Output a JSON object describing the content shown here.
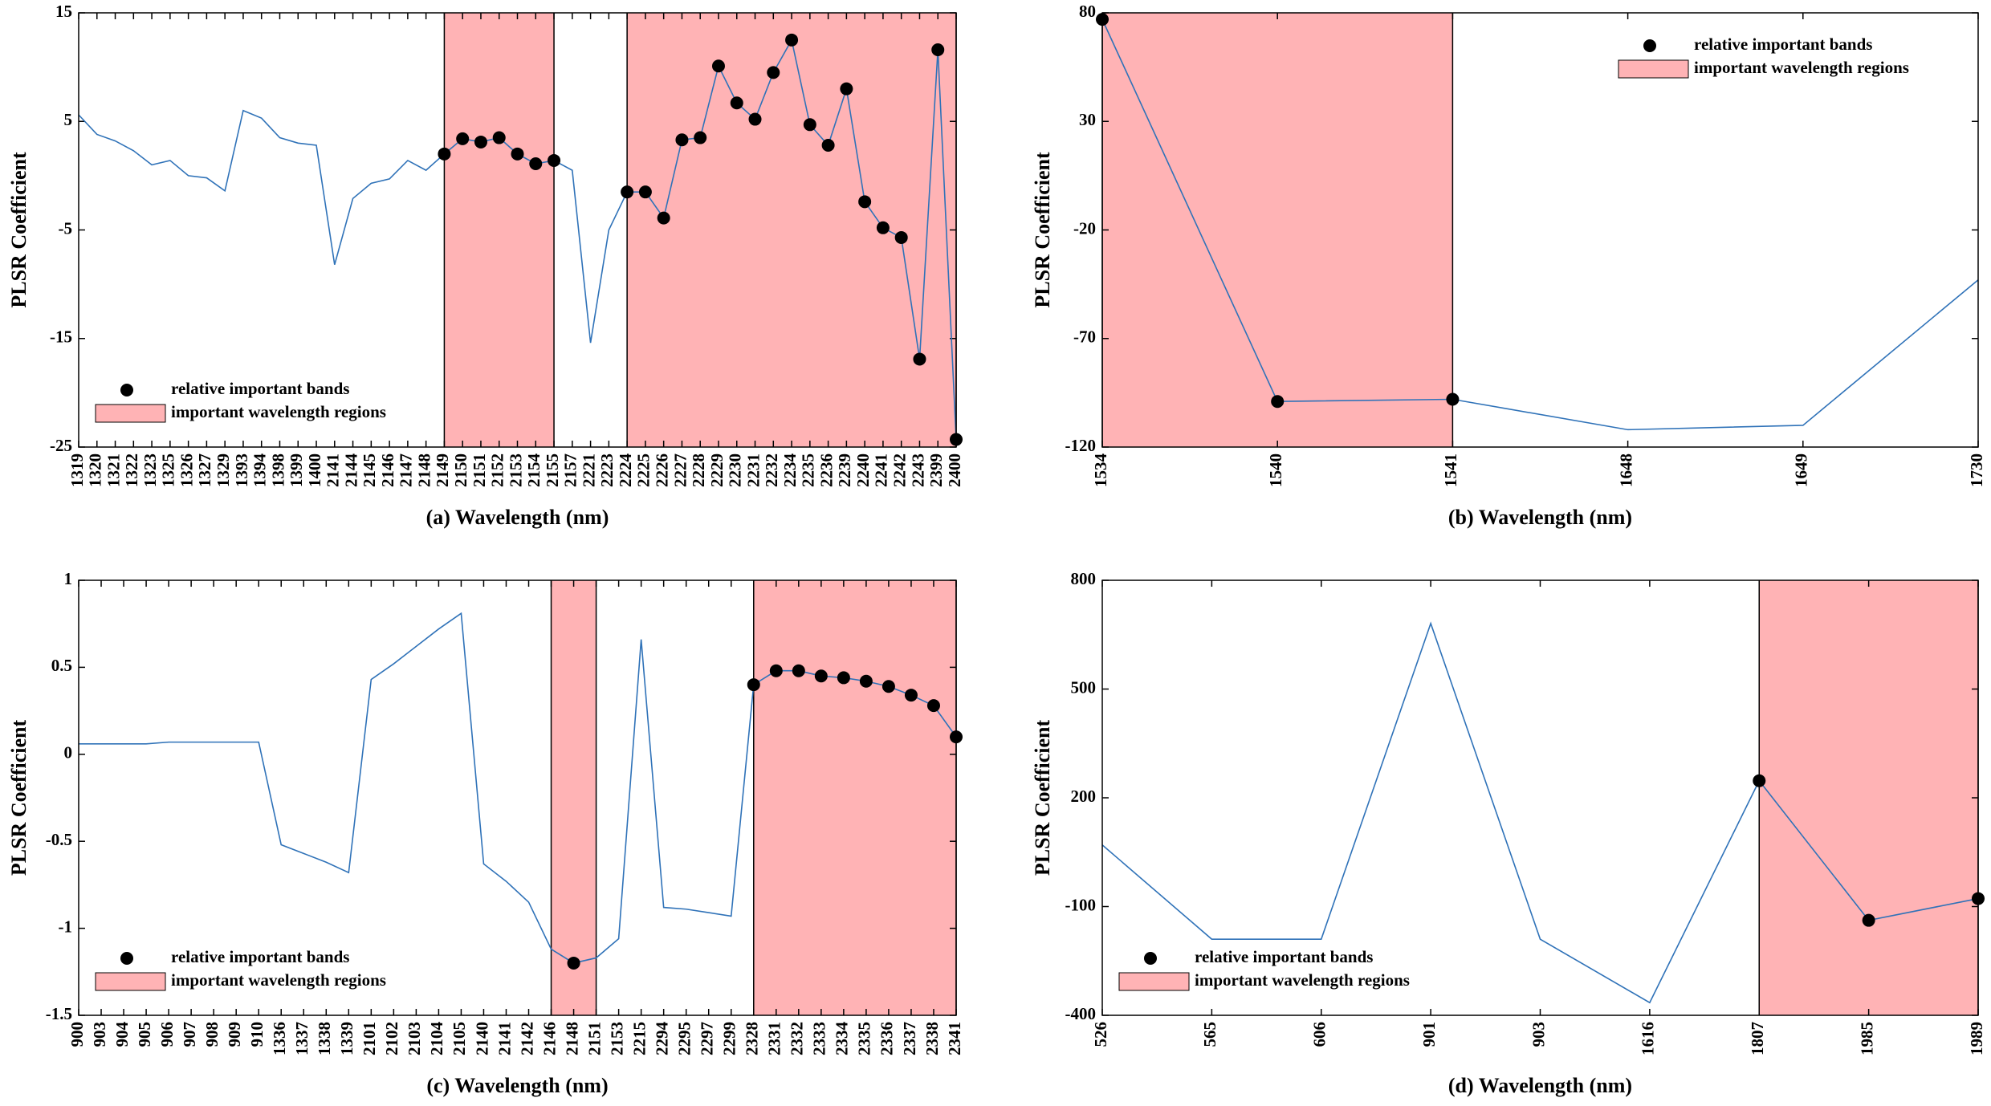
{
  "chart_data": [
    {
      "type": "line",
      "xlabel": "(a) Wavelength (nm)",
      "ylabel": "PLSR Coefficient",
      "categories": [
        "1319",
        "1320",
        "1321",
        "1322",
        "1323",
        "1325",
        "1326",
        "1327",
        "1329",
        "1393",
        "1394",
        "1398",
        "1399",
        "1400",
        "2141",
        "2144",
        "2145",
        "2146",
        "2147",
        "2148",
        "2149",
        "2150",
        "2151",
        "2152",
        "2153",
        "2154",
        "2155",
        "2157",
        "2221",
        "2223",
        "2224",
        "2225",
        "2226",
        "2227",
        "2228",
        "2229",
        "2230",
        "2231",
        "2232",
        "2234",
        "2235",
        "2236",
        "2239",
        "2240",
        "2241",
        "2242",
        "2243",
        "2399",
        "2400"
      ],
      "values": [
        5.6,
        3.8,
        3.2,
        2.3,
        1.0,
        1.4,
        0.0,
        -0.2,
        -1.4,
        6.0,
        5.3,
        3.5,
        3.0,
        2.8,
        -8.2,
        -2.1,
        -0.7,
        -0.3,
        1.4,
        0.5,
        2.0,
        3.4,
        3.1,
        3.5,
        2.0,
        1.1,
        1.4,
        0.5,
        -15.4,
        -5.0,
        -1.5,
        -1.5,
        -3.9,
        3.3,
        3.5,
        10.1,
        6.7,
        5.2,
        9.5,
        12.5,
        4.7,
        2.8,
        8.0,
        -2.4,
        -4.8,
        -5.7,
        -16.9,
        11.6,
        -24.3
      ],
      "important": [
        "2149",
        "2150",
        "2151",
        "2152",
        "2153",
        "2154",
        "2155",
        "2224",
        "2225",
        "2226",
        "2227",
        "2228",
        "2229",
        "2230",
        "2231",
        "2232",
        "2234",
        "2235",
        "2236",
        "2239",
        "2240",
        "2241",
        "2242",
        "2243",
        "2399",
        "2400"
      ],
      "regions": [
        [
          "2149",
          "2155"
        ],
        [
          "2224",
          "2400"
        ]
      ],
      "ylim": [
        -25,
        15
      ],
      "yticks": [
        -25,
        -15,
        -5,
        5,
        15
      ],
      "color": "#2f72b8",
      "marker_color": "#000000",
      "region_color": "#ffb3b5",
      "marker_name": "relative important bands",
      "region_name": "important wavelength regions",
      "legend_loc": "lower left"
    },
    {
      "type": "line",
      "xlabel": "(b) Wavelength (nm)",
      "ylabel": "PLSR Coefficient",
      "categories": [
        "1534",
        "1540",
        "1541",
        "1648",
        "1649",
        "1730"
      ],
      "values": [
        77,
        -99,
        -98,
        -112,
        -110,
        -43
      ],
      "important": [
        "1534",
        "1540",
        "1541"
      ],
      "regions": [
        [
          "1534",
          "1541"
        ]
      ],
      "ylim": [
        -120,
        80
      ],
      "yticks": [
        -120,
        -70,
        -20,
        30,
        80
      ],
      "color": "#2f72b8",
      "marker_color": "#000000",
      "region_color": "#ffb3b5",
      "marker_name": "relative important bands",
      "region_name": "important wavelength regions",
      "legend_loc": "upper right"
    },
    {
      "type": "line",
      "xlabel": "(c) Wavelength (nm)",
      "ylabel": "PLSR Coefficient",
      "categories": [
        "900",
        "903",
        "904",
        "905",
        "906",
        "907",
        "908",
        "909",
        "910",
        "1336",
        "1337",
        "1338",
        "1339",
        "2101",
        "2102",
        "2103",
        "2104",
        "2105",
        "2140",
        "2141",
        "2142",
        "2146",
        "2148",
        "2151",
        "2153",
        "2215",
        "2294",
        "2295",
        "2297",
        "2299",
        "2328",
        "2331",
        "2332",
        "2333",
        "2334",
        "2335",
        "2336",
        "2337",
        "2338",
        "2341"
      ],
      "values": [
        0.06,
        0.06,
        0.06,
        0.06,
        0.07,
        0.07,
        0.07,
        0.07,
        0.07,
        -0.52,
        -0.57,
        -0.62,
        -0.68,
        0.43,
        0.52,
        0.62,
        0.72,
        0.81,
        -0.63,
        -0.73,
        -0.85,
        -1.12,
        -1.2,
        -1.17,
        -1.06,
        0.66,
        -0.88,
        -0.89,
        -0.91,
        -0.93,
        0.4,
        0.48,
        0.48,
        0.45,
        0.44,
        0.42,
        0.39,
        0.34,
        0.28,
        0.1
      ],
      "important": [
        "2148",
        "2328",
        "2331",
        "2332",
        "2333",
        "2334",
        "2335",
        "2336",
        "2337",
        "2338",
        "2341"
      ],
      "regions": [
        [
          "2146",
          "2151"
        ],
        [
          "2328",
          "2341"
        ]
      ],
      "ylim": [
        -1.5,
        1
      ],
      "yticks": [
        -1.5,
        -1,
        -0.5,
        0,
        0.5,
        1
      ],
      "color": "#2f72b8",
      "marker_color": "#000000",
      "region_color": "#ffb3b5",
      "marker_name": "relative important bands",
      "region_name": "important wavelength regions",
      "legend_loc": "lower left"
    },
    {
      "type": "line",
      "xlabel": "(d) Wavelength (nm)",
      "ylabel": "PLSR Coefficient",
      "categories": [
        "526",
        "565",
        "606",
        "901",
        "903",
        "1616",
        "1807",
        "1985",
        "1989"
      ],
      "values": [
        70,
        -190,
        -190,
        681,
        -190,
        -365,
        247,
        -138,
        -78
      ],
      "important": [
        "1807",
        "1985",
        "1989"
      ],
      "regions": [
        [
          "1807",
          "1989"
        ]
      ],
      "ylim": [
        -400,
        800
      ],
      "yticks": [
        -400,
        -100,
        200,
        500,
        800
      ],
      "color": "#2f72b8",
      "marker_color": "#000000",
      "region_color": "#ffb3b5",
      "marker_name": "relative important bands",
      "region_name": "important wavelength regions",
      "legend_loc": "lower left"
    }
  ]
}
